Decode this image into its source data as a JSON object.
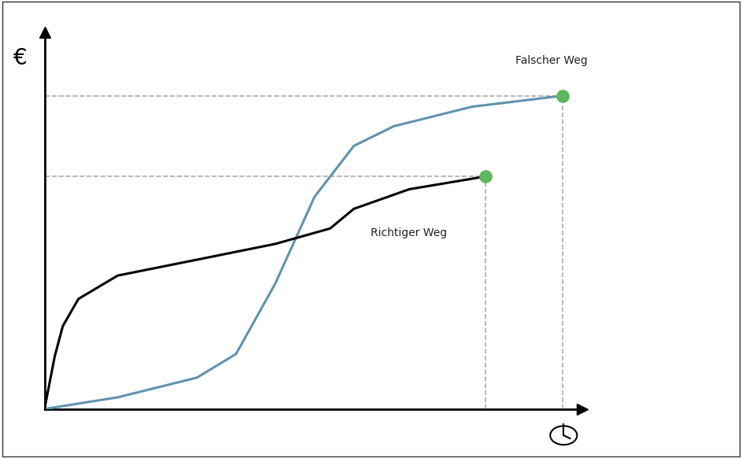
{
  "chart_data": {
    "type": "line",
    "ylabel": "€",
    "xlim": [
      0,
      100
    ],
    "ylim": [
      0,
      100
    ],
    "tick_labels": false,
    "series": [
      {
        "name": "Falscher Weg",
        "color": "#5f93ad",
        "x": [
          0,
          13.6,
          28.3,
          35.6,
          42.9,
          50.2,
          57.5,
          64.9,
          79.5,
          96.3
        ],
        "values": [
          0,
          3.1,
          8.3,
          14.6,
          33.3,
          56.3,
          69.8,
          75,
          80.2,
          83.1
        ]
      },
      {
        "name": "Richtiger Weg",
        "color": "#000000",
        "x": [
          0,
          1.9,
          3.4,
          6.3,
          13.6,
          28.3,
          42.9,
          53.1,
          57.5,
          67.8,
          82.0
        ],
        "values": [
          0,
          14,
          22,
          29.2,
          35.4,
          39.6,
          43.8,
          47.9,
          53.1,
          58.3,
          61.7
        ]
      }
    ]
  }
}
